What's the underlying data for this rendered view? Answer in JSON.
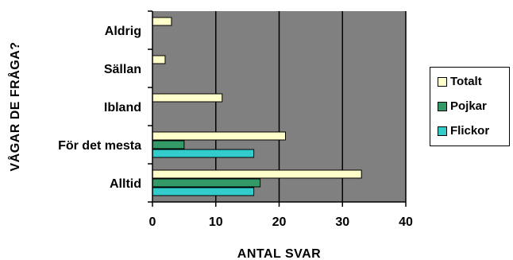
{
  "chart_data": {
    "type": "bar",
    "orientation": "horizontal",
    "xlabel": "ANTAL SVAR",
    "ylabel": "VÅGAR DE FRÅGA?",
    "xlim": [
      0,
      40
    ],
    "xticks": [
      0,
      10,
      20,
      30,
      40
    ],
    "grid": true,
    "legend_position": "right",
    "plot_background": "#808080",
    "categories": [
      "Aldrig",
      "Sällan",
      "Ibland",
      "För det mesta",
      "Alltid"
    ],
    "series": [
      {
        "name": "Totalt",
        "color": "#ffffcc",
        "values": [
          3,
          2,
          11,
          21,
          33
        ]
      },
      {
        "name": "Pojkar",
        "color": "#339966",
        "values": [
          0,
          0,
          0,
          5,
          17
        ]
      },
      {
        "name": "Flickor",
        "color": "#33cccc",
        "values": [
          0,
          0,
          0,
          16,
          16
        ]
      }
    ]
  }
}
